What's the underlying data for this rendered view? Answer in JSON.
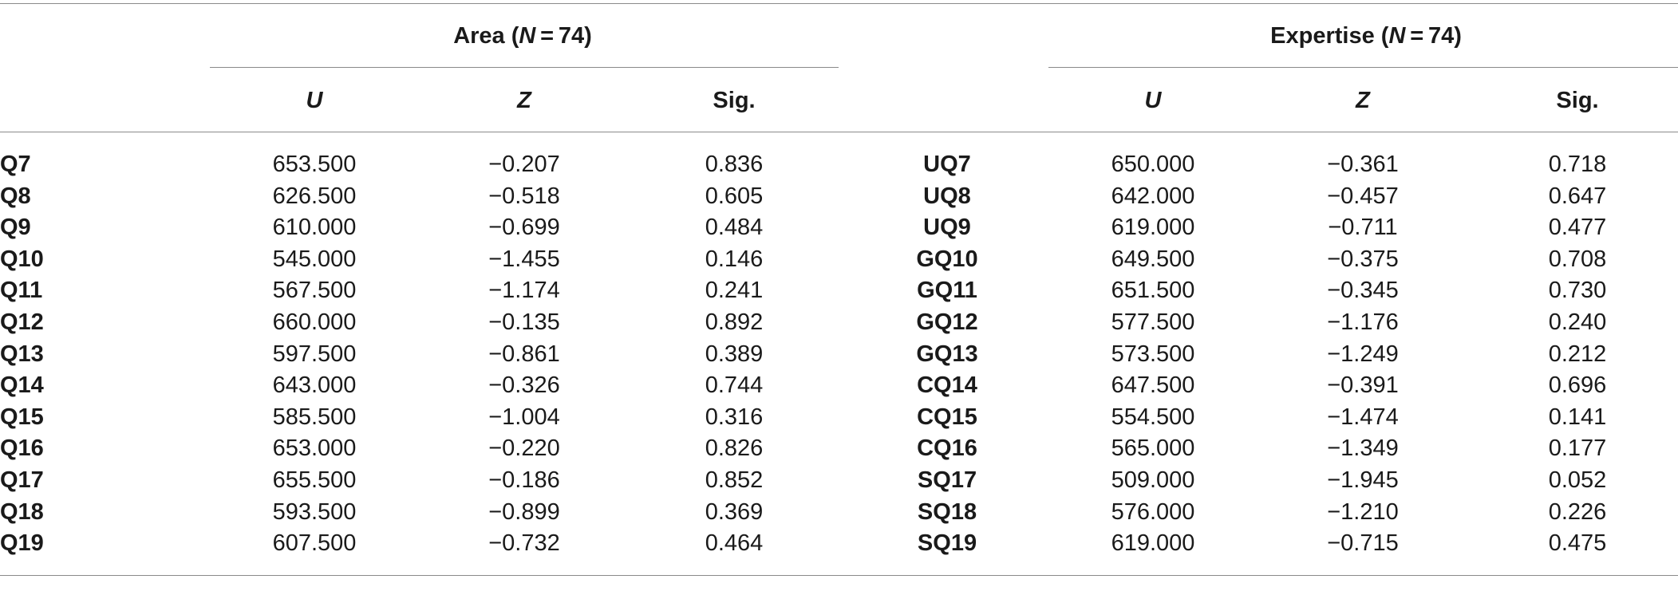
{
  "group_headers": {
    "area": {
      "prefix": "Area (",
      "n_var": "N",
      "n_suffix": " = 74)"
    },
    "expertise": {
      "prefix": "Expertise (",
      "n_var": "N",
      "n_suffix": " = 74)"
    }
  },
  "column_headers": {
    "u": "U",
    "z": "Z",
    "sig": "Sig."
  },
  "rows": [
    {
      "q": "Q7",
      "u": "653.500",
      "z": "−0.207",
      "sig": "0.836",
      "eq": "UQ7",
      "eu": "650.000",
      "ez": "−0.361",
      "esig": "0.718"
    },
    {
      "q": "Q8",
      "u": "626.500",
      "z": "−0.518",
      "sig": "0.605",
      "eq": "UQ8",
      "eu": "642.000",
      "ez": "−0.457",
      "esig": "0.647"
    },
    {
      "q": "Q9",
      "u": "610.000",
      "z": "−0.699",
      "sig": "0.484",
      "eq": "UQ9",
      "eu": "619.000",
      "ez": "−0.711",
      "esig": "0.477"
    },
    {
      "q": "Q10",
      "u": "545.000",
      "z": "−1.455",
      "sig": "0.146",
      "eq": "GQ10",
      "eu": "649.500",
      "ez": "−0.375",
      "esig": "0.708"
    },
    {
      "q": "Q11",
      "u": "567.500",
      "z": "−1.174",
      "sig": "0.241",
      "eq": "GQ11",
      "eu": "651.500",
      "ez": "−0.345",
      "esig": "0.730"
    },
    {
      "q": "Q12",
      "u": "660.000",
      "z": "−0.135",
      "sig": "0.892",
      "eq": "GQ12",
      "eu": "577.500",
      "ez": "−1.176",
      "esig": "0.240"
    },
    {
      "q": "Q13",
      "u": "597.500",
      "z": "−0.861",
      "sig": "0.389",
      "eq": "GQ13",
      "eu": "573.500",
      "ez": "−1.249",
      "esig": "0.212"
    },
    {
      "q": "Q14",
      "u": "643.000",
      "z": "−0.326",
      "sig": "0.744",
      "eq": "CQ14",
      "eu": "647.500",
      "ez": "−0.391",
      "esig": "0.696"
    },
    {
      "q": "Q15",
      "u": "585.500",
      "z": "−1.004",
      "sig": "0.316",
      "eq": "CQ15",
      "eu": "554.500",
      "ez": "−1.474",
      "esig": "0.141"
    },
    {
      "q": "Q16",
      "u": "653.000",
      "z": "−0.220",
      "sig": "0.826",
      "eq": "CQ16",
      "eu": "565.000",
      "ez": "−1.349",
      "esig": "0.177"
    },
    {
      "q": "Q17",
      "u": "655.500",
      "z": "−0.186",
      "sig": "0.852",
      "eq": "SQ17",
      "eu": "509.000",
      "ez": "−1.945",
      "esig": "0.052"
    },
    {
      "q": "Q18",
      "u": "593.500",
      "z": "−0.899",
      "sig": "0.369",
      "eq": "SQ18",
      "eu": "576.000",
      "ez": "−1.210",
      "esig": "0.226"
    },
    {
      "q": "Q19",
      "u": "607.500",
      "z": "−0.732",
      "sig": "0.464",
      "eq": "SQ19",
      "eu": "619.000",
      "ez": "−0.715",
      "esig": "0.475"
    }
  ]
}
